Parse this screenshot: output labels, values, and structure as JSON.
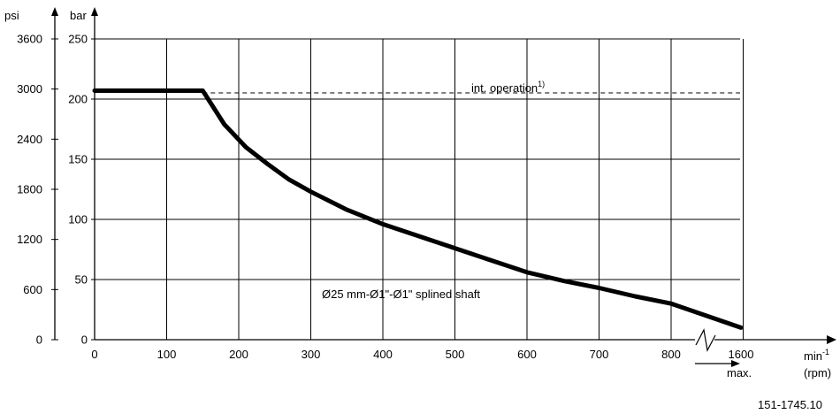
{
  "chart_data": {
    "type": "line",
    "title": "",
    "ylabel": "bar",
    "ylabel_secondary": "psi",
    "xlabel": "min",
    "xlabel_exponent": "-1",
    "xlabel_unit": "(rpm)",
    "x_break_label": "max.",
    "ylim": [
      0,
      250
    ],
    "psi_ylim": [
      0,
      3600
    ],
    "xlim": [
      0,
      900
    ],
    "x_break_value": 1600,
    "bar_ticks": [
      "0",
      "50",
      "100",
      "150",
      "200",
      "250"
    ],
    "psi_ticks": [
      "0",
      "600",
      "1200",
      "1800",
      "2400",
      "3000",
      "3600"
    ],
    "x_ticks": [
      "0",
      "100",
      "200",
      "300",
      "400",
      "500",
      "600",
      "700",
      "800",
      "1600"
    ],
    "grid": true,
    "series": [
      {
        "name": "Ø25 mm-Ø1\"-Ø1\" splined shaft",
        "x": [
          0,
          150,
          180,
          210,
          240,
          270,
          300,
          350,
          400,
          450,
          500,
          550,
          600,
          650,
          700,
          750,
          800,
          1600
        ],
        "y": [
          207,
          207,
          179,
          160,
          146,
          133,
          123,
          108,
          96,
          86,
          76,
          66,
          56,
          49,
          43,
          36,
          30,
          10
        ]
      }
    ],
    "reference_line": {
      "label": "int. operation",
      "label_sup": "1)",
      "y": 200
    },
    "figure_id": "151-1745.10"
  }
}
